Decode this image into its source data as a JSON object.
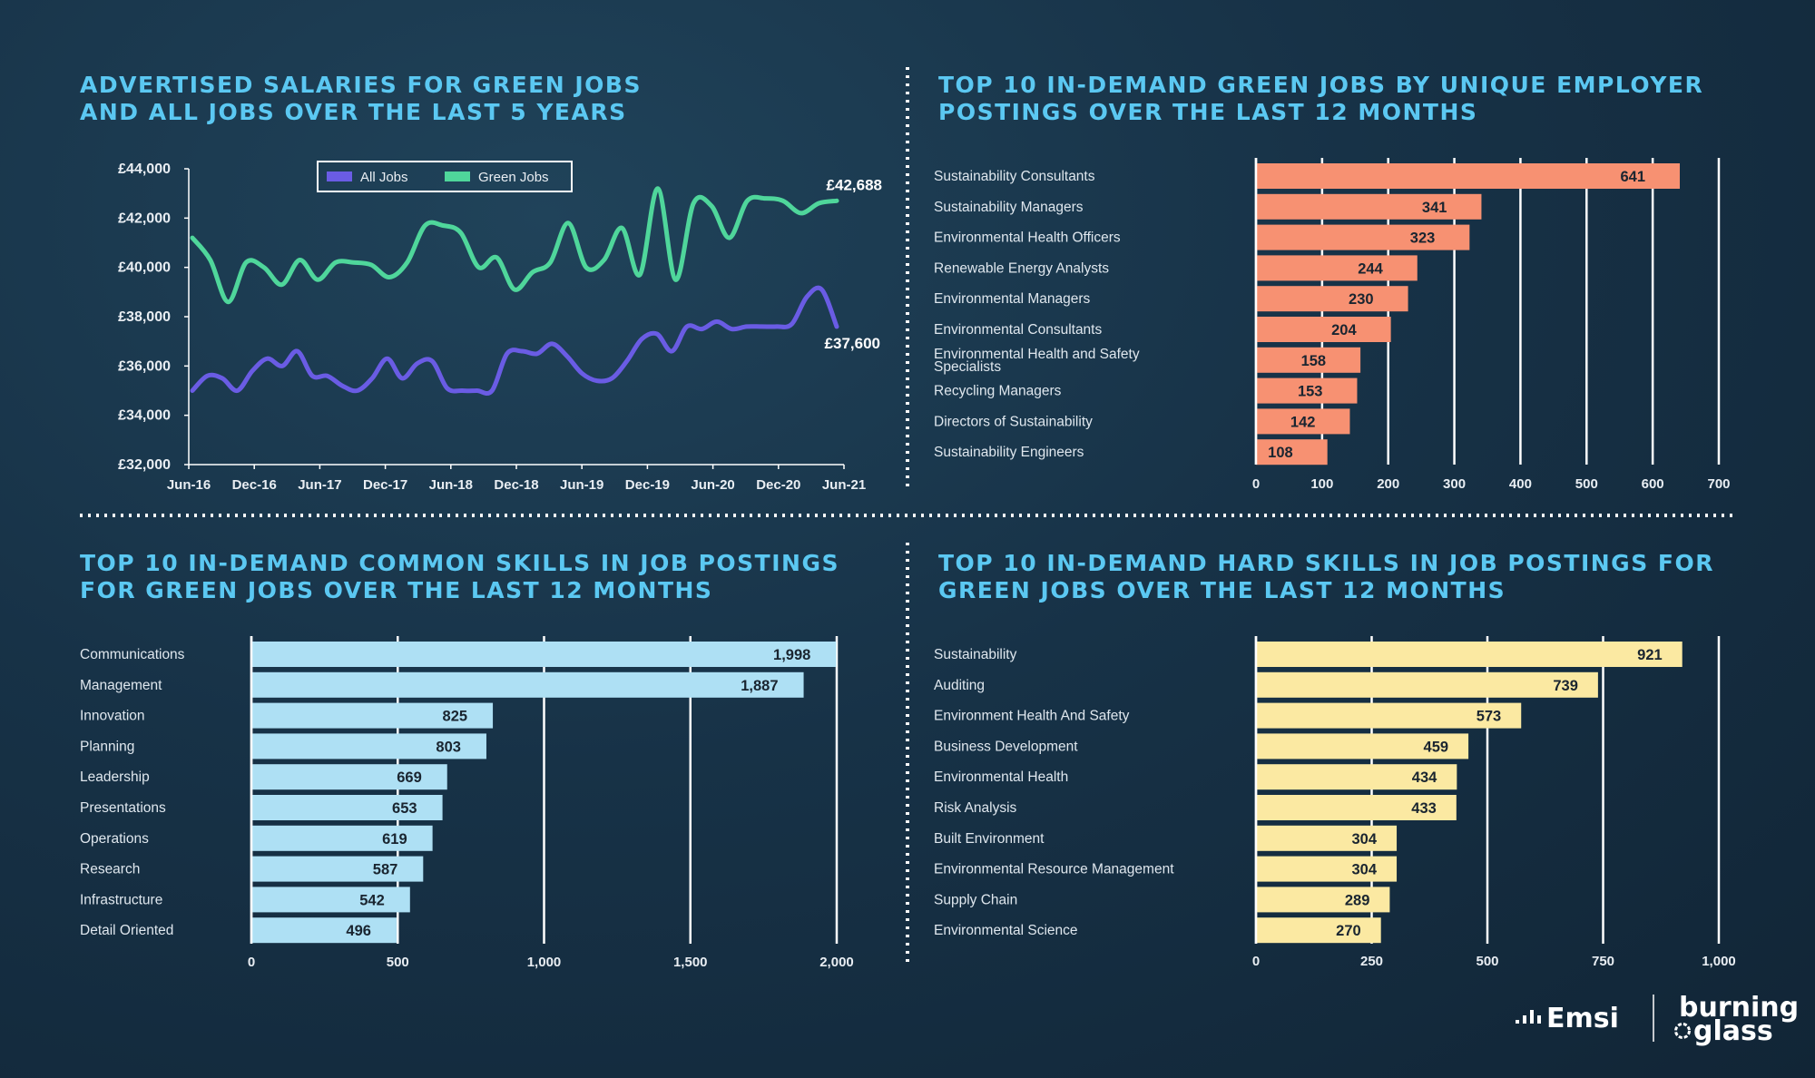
{
  "colors": {
    "title": "#5bc8f2",
    "all_jobs": "#6a5ce4",
    "green_jobs": "#4fd69b",
    "jobs_bars": "#f79172",
    "common_bars": "#aee0f4",
    "hard_bars": "#fbe9a2",
    "background": "#173247"
  },
  "titles": {
    "salaries": [
      "ADVERTISED SALARIES FOR GREEN JOBS",
      "AND ALL JOBS OVER THE LAST 5 YEARS"
    ],
    "jobs": [
      "TOP 10 IN-DEMAND GREEN JOBS BY UNIQUE EMPLOYER",
      "POSTINGS OVER THE LAST 12 MONTHS"
    ],
    "common": [
      "TOP 10 IN-DEMAND COMMON SKILLS IN JOB POSTINGS",
      "FOR GREEN JOBS OVER THE LAST 12 MONTHS"
    ],
    "hard": [
      "TOP 10 IN-DEMAND HARD SKILLS IN JOB POSTINGS FOR",
      "GREEN JOBS OVER THE LAST 12 MONTHS"
    ]
  },
  "branding": {
    "emsi": "Emsi",
    "burning_glass": [
      "burning",
      "glass"
    ]
  },
  "chart_data": [
    {
      "type": "line",
      "ylim": [
        32000,
        44000
      ],
      "yticks": [
        32000,
        34000,
        36000,
        38000,
        40000,
        42000,
        44000
      ],
      "ytick_labels": [
        "£32,000",
        "£34,000",
        "£36,000",
        "£38,000",
        "£40,000",
        "£42,000",
        "£44,000"
      ],
      "xticks": [
        "Jun-16",
        "Dec-16",
        "Jun-17",
        "Dec-17",
        "Jun-18",
        "Dec-18",
        "Jun-19",
        "Dec-19",
        "Jun-20",
        "Dec-20",
        "Jun-21"
      ],
      "legend_placement": "top-center",
      "series": [
        {
          "name": "All Jobs",
          "end_label": "£37,600",
          "values": [
            35000,
            35600,
            35500,
            35000,
            35800,
            36300,
            36000,
            36600,
            35600,
            35600,
            35200,
            35000,
            35500,
            36300,
            35500,
            36100,
            36200,
            35100,
            35000,
            35000,
            35000,
            36500,
            36600,
            36500,
            36900,
            36400,
            35700,
            35400,
            35500,
            36200,
            37100,
            37300,
            36600,
            37600,
            37500,
            37800,
            37500,
            37600,
            37600,
            37600,
            37700,
            38800,
            39100,
            37600
          ]
        },
        {
          "name": "Green Jobs",
          "end_label": "£42,688",
          "values": [
            41200,
            40300,
            38600,
            40200,
            40000,
            39300,
            40300,
            39500,
            40200,
            40200,
            40100,
            39600,
            40200,
            41700,
            41700,
            41400,
            40000,
            40400,
            39100,
            39800,
            40200,
            41800,
            40000,
            40300,
            41600,
            39700,
            43200,
            39500,
            42600,
            42500,
            41200,
            42700,
            42800,
            42700,
            42200,
            42600,
            42700
          ]
        }
      ]
    },
    {
      "type": "bar",
      "orientation": "horizontal",
      "categories": [
        "Sustainability Consultants",
        "Sustainability Managers",
        "Environmental Health Officers",
        "Renewable Energy Analysts",
        "Environmental Managers",
        "Environmental Consultants",
        "Environmental Health and Safety Specialists",
        "Recycling Managers",
        "Directors of Sustainability",
        "Sustainability Engineers"
      ],
      "values": [
        641,
        341,
        323,
        244,
        230,
        204,
        158,
        153,
        142,
        108
      ],
      "value_labels": [
        "641",
        "341",
        "323",
        "244",
        "230",
        "204",
        "158",
        "153",
        "142",
        "108"
      ],
      "xlim": [
        0,
        700
      ],
      "xticks": [
        0,
        100,
        200,
        300,
        400,
        500,
        600,
        700
      ],
      "xtick_labels": [
        "0",
        "100",
        "200",
        "300",
        "400",
        "500",
        "600",
        "700"
      ]
    },
    {
      "type": "bar",
      "orientation": "horizontal",
      "categories": [
        "Communications",
        "Management",
        "Innovation",
        "Planning",
        "Leadership",
        "Presentations",
        "Operations",
        "Research",
        "Infrastructure",
        "Detail Oriented"
      ],
      "values": [
        1998,
        1887,
        825,
        803,
        669,
        653,
        619,
        587,
        542,
        496
      ],
      "value_labels": [
        "1,998",
        "1,887",
        "825",
        "803",
        "669",
        "653",
        "619",
        "587",
        "542",
        "496"
      ],
      "xlim": [
        0,
        2000
      ],
      "xticks": [
        0,
        500,
        1000,
        1500,
        2000
      ],
      "xtick_labels": [
        "0",
        "500",
        "1,000",
        "1,500",
        "2,000"
      ]
    },
    {
      "type": "bar",
      "orientation": "horizontal",
      "categories": [
        "Sustainability",
        "Auditing",
        "Environment Health And Safety",
        "Business Development",
        "Environmental Health",
        "Risk Analysis",
        "Built Environment",
        "Environmental Resource Management",
        "Supply Chain",
        "Environmental Science"
      ],
      "values": [
        921,
        739,
        573,
        459,
        434,
        433,
        304,
        304,
        289,
        270
      ],
      "value_labels": [
        "921",
        "739",
        "573",
        "459",
        "434",
        "433",
        "304",
        "304",
        "289",
        "270"
      ],
      "xlim": [
        0,
        1000
      ],
      "xticks": [
        0,
        250,
        500,
        750,
        1000
      ],
      "xtick_labels": [
        "0",
        "250",
        "500",
        "750",
        "1,000"
      ]
    }
  ]
}
